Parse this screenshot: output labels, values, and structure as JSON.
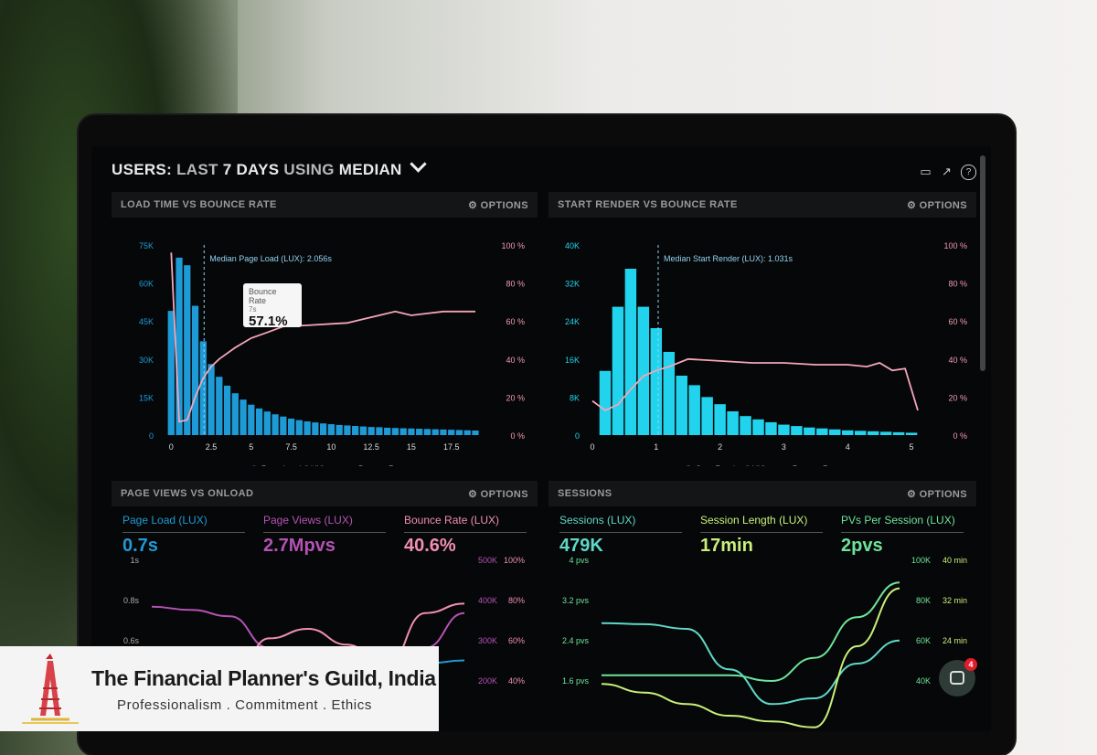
{
  "header": {
    "part1": "USERS:",
    "part2": "LAST",
    "part3": "7 DAYS",
    "part4": "USING",
    "part5": "MEDIAN",
    "icons": [
      "monitor-icon",
      "share-icon",
      "help-icon"
    ]
  },
  "panels": {
    "load": {
      "title": "LOAD TIME VS BOUNCE RATE",
      "options": "⚙ OPTIONS",
      "median_label": "Median Page Load (LUX): 2.056s",
      "tooltip_title": "Bounce Rate",
      "tooltip_sub": "7s",
      "tooltip_value": "57.1%",
      "legend": [
        "Page Load (LUX)",
        "Bounce Rate"
      ]
    },
    "render": {
      "title": "START RENDER VS BOUNCE RATE",
      "options": "⚙ OPTIONS",
      "median_label": "Median Start Render (LUX): 1.031s",
      "legend": [
        "Start Render (LUX)",
        "Bounce Rate"
      ]
    },
    "pageviews": {
      "title": "PAGE VIEWS VS ONLOAD",
      "options": "⚙ OPTIONS",
      "kpis": [
        {
          "label": "Page Load (LUX)",
          "value": "0.7s",
          "color": "#1e9bd7"
        },
        {
          "label": "Page Views (LUX)",
          "value": "2.7Mpvs",
          "color": "#b453b5"
        },
        {
          "label": "Bounce Rate (LUX)",
          "value": "40.6%",
          "color": "#f08fb0"
        }
      ],
      "left_ticks": [
        "1s",
        "0.8s",
        "0.6s"
      ],
      "right_ticks_a": [
        "500K",
        "400K",
        "300K",
        "200K"
      ],
      "right_ticks_b": [
        "100%",
        "80%",
        "60%",
        "40%"
      ]
    },
    "sessions": {
      "title": "SESSIONS",
      "options": "⚙ OPTIONS",
      "kpis": [
        {
          "label": "Sessions (LUX)",
          "value": "479K",
          "color": "#5fd8c8"
        },
        {
          "label": "Session Length (LUX)",
          "value": "17min",
          "color": "#c9f07a"
        },
        {
          "label": "PVs Per Session (LUX)",
          "value": "2pvs",
          "color": "#6fe39b"
        }
      ],
      "left_ticks": [
        "4 pvs",
        "3.2 pvs",
        "2.4 pvs",
        "1.6 pvs"
      ],
      "right_ticks_a": [
        "100K",
        "80K",
        "60K",
        "40K"
      ],
      "right_ticks_b": [
        "40 min",
        "32 min",
        "24 min"
      ]
    }
  },
  "chat": {
    "badge": "4"
  },
  "logo": {
    "title": "The Financial Planner's Guild, India",
    "subtitle": "Professionalism . Commitment . Ethics"
  },
  "colors": {
    "blue": "#1e9bd7",
    "cyan": "#22d3ee",
    "pink": "#f4a6b8"
  },
  "chart_data": [
    {
      "type": "bar",
      "title": "LOAD TIME VS BOUNCE RATE",
      "x_ticks": [
        "0",
        "2.5",
        "5",
        "7.5",
        "10",
        "12.5",
        "15",
        "17.5"
      ],
      "y_ticks_left": [
        "0",
        "15K",
        "30K",
        "45K",
        "60K",
        "75K"
      ],
      "y_ticks_right": [
        "0 %",
        "20 %",
        "40 %",
        "60 %",
        "80 %",
        "100 %"
      ],
      "xlim": [
        -0.3,
        19.8
      ],
      "ylim": [
        0,
        75000
      ],
      "series": [
        {
          "name": "Page Load (LUX)",
          "x": [
            0,
            0.5,
            1,
            1.5,
            2,
            2.5,
            3,
            3.5,
            4,
            4.5,
            5,
            5.5,
            6,
            6.5,
            7,
            7.5,
            8,
            8.5,
            9,
            9.5,
            10,
            10.5,
            11,
            11.5,
            12,
            12.5,
            13,
            13.5,
            14,
            14.5,
            15,
            15.5,
            16,
            16.5,
            17,
            17.5,
            18,
            18.5,
            19
          ],
          "values": [
            49000,
            70000,
            67000,
            51000,
            37000,
            28000,
            23000,
            19500,
            16500,
            14000,
            12000,
            10500,
            9300,
            8200,
            7300,
            6500,
            5900,
            5400,
            5000,
            4600,
            4300,
            4000,
            3800,
            3600,
            3400,
            3200,
            3100,
            2900,
            2800,
            2700,
            2600,
            2500,
            2400,
            2300,
            2200,
            2100,
            2000,
            1900,
            1800
          ]
        },
        {
          "name": "Bounce Rate",
          "x": [
            0,
            0.5,
            1,
            1.5,
            2,
            2.5,
            3,
            4,
            5,
            6,
            7,
            8,
            9,
            10,
            11,
            12,
            13,
            14,
            14.5,
            15,
            16,
            17,
            18,
            19
          ],
          "values": [
            96,
            7,
            8,
            20,
            30,
            36,
            40,
            46,
            51,
            54,
            57.1,
            57.5,
            58,
            58.5,
            59,
            61,
            63,
            65,
            64,
            63,
            64,
            65,
            65,
            65
          ]
        }
      ],
      "legend": "bottom"
    },
    {
      "type": "bar",
      "title": "START RENDER VS BOUNCE RATE",
      "x_ticks": [
        "0",
        "1",
        "2",
        "3",
        "4",
        "5"
      ],
      "y_ticks_left": [
        "0",
        "8K",
        "16K",
        "24K",
        "32K",
        "40K"
      ],
      "y_ticks_right": [
        "0 %",
        "20 %",
        "40 %",
        "60 %",
        "80 %",
        "100 %"
      ],
      "xlim": [
        0,
        5.3
      ],
      "ylim": [
        0,
        40000
      ],
      "series": [
        {
          "name": "Start Render (LUX)",
          "x": [
            0.2,
            0.4,
            0.6,
            0.8,
            1.0,
            1.2,
            1.4,
            1.6,
            1.8,
            2.0,
            2.2,
            2.4,
            2.6,
            2.8,
            3.0,
            3.2,
            3.4,
            3.6,
            3.8,
            4.0,
            4.2,
            4.4,
            4.6,
            4.8,
            5.0
          ],
          "values": [
            13500,
            27000,
            35000,
            27000,
            22500,
            17500,
            12500,
            10500,
            8000,
            6500,
            5000,
            4000,
            3300,
            2700,
            2200,
            1900,
            1600,
            1400,
            1200,
            1000,
            900,
            800,
            700,
            600,
            500
          ]
        },
        {
          "name": "Bounce Rate",
          "x": [
            0,
            0.2,
            0.4,
            0.6,
            0.8,
            1.0,
            1.2,
            1.5,
            2,
            2.5,
            3,
            3.5,
            4,
            4.3,
            4.5,
            4.7,
            4.9,
            5.1
          ],
          "values": [
            18,
            13,
            16,
            24,
            31,
            34,
            36,
            40,
            39,
            38,
            38,
            37,
            37,
            36,
            38,
            34,
            35,
            13
          ]
        }
      ],
      "legend": "bottom"
    },
    {
      "type": "line",
      "title": "PAGE VIEWS VS ONLOAD",
      "x": [
        0,
        1,
        2,
        3,
        4,
        5,
        6,
        7,
        8
      ],
      "series": [
        {
          "name": "Page Load (LUX)",
          "values": [
            0.61,
            0.66,
            0.7,
            0.7,
            0.71,
            0.71,
            0.69,
            0.67,
            0.68
          ]
        },
        {
          "name": "Page Views (LUX)",
          "values": [
            0.85,
            0.84,
            0.82,
            0.72,
            0.58,
            0.55,
            0.56,
            0.72,
            0.83
          ]
        },
        {
          "name": "Bounce Rate (LUX)",
          "values": [
            0.55,
            0.52,
            0.59,
            0.75,
            0.78,
            0.73,
            0.66,
            0.83,
            0.86
          ]
        }
      ]
    },
    {
      "type": "line",
      "title": "SESSIONS",
      "x": [
        0,
        1,
        2,
        3,
        4,
        5,
        6,
        7
      ],
      "series": [
        {
          "name": "Sessions (LUX)",
          "values": [
            2.9,
            2.88,
            2.8,
            2.1,
            1.5,
            1.6,
            2.2,
            2.6
          ]
        },
        {
          "name": "Session Length (LUX)",
          "values": [
            1.85,
            1.7,
            1.5,
            1.3,
            1.2,
            1.1,
            2.5,
            3.5
          ]
        },
        {
          "name": "PVs Per Session (LUX)",
          "values": [
            2.0,
            2.0,
            2.0,
            2.0,
            1.9,
            2.3,
            3.0,
            3.6
          ]
        }
      ]
    }
  ]
}
